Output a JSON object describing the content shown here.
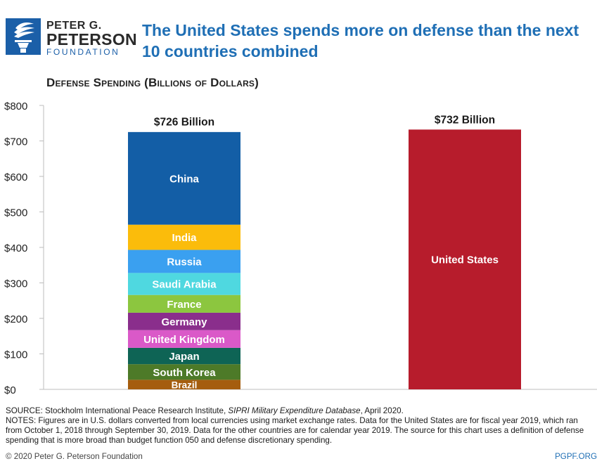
{
  "header": {
    "logo_line1": "PETER G.",
    "logo_line2": "PETERSON",
    "logo_line3": "FOUNDATION",
    "headline_line1": "The United States spends more on defense than the next",
    "headline_line2": "10 countries combined",
    "accent_color": "#1f6fb5"
  },
  "chart_data": {
    "type": "bar",
    "subtype": "stacked",
    "title": "Defense Spending (Billions of Dollars)",
    "ylim": [
      0,
      800
    ],
    "yticks": [
      0,
      100,
      200,
      300,
      400,
      500,
      600,
      700,
      800
    ],
    "ytick_labels": [
      "$0",
      "$100",
      "$200",
      "$300",
      "$400",
      "$500",
      "$600",
      "$700",
      "$800"
    ],
    "grid": false,
    "legend": "none",
    "bars": [
      {
        "total_label": "$726 Billion",
        "total": 726,
        "segments": [
          {
            "name": "Brazil",
            "value": 27,
            "color": "#a55d0e"
          },
          {
            "name": "South Korea",
            "value": 44,
            "color": "#4d7a28"
          },
          {
            "name": "Japan",
            "value": 46,
            "color": "#0e6455"
          },
          {
            "name": "United Kingdom",
            "value": 50,
            "color": "#da59c8"
          },
          {
            "name": "Germany",
            "value": 49,
            "color": "#8a2e8c"
          },
          {
            "name": "France",
            "value": 50,
            "color": "#8cc63f"
          },
          {
            "name": "Saudi Arabia",
            "value": 62,
            "color": "#4fd8e0"
          },
          {
            "name": "Russia",
            "value": 65,
            "color": "#3aa0f0"
          },
          {
            "name": "India",
            "value": 71,
            "color": "#fbbc0b"
          },
          {
            "name": "China",
            "value": 261,
            "color": "#135ea6"
          }
        ]
      },
      {
        "total_label": "$732 Billion",
        "total": 732,
        "segments": [
          {
            "name": "United States",
            "value": 732,
            "color": "#b71c2c"
          }
        ]
      }
    ]
  },
  "footer": {
    "source_prefix": "SOURCE: Stockholm International Peace Research Institute, ",
    "source_italic": "SIPRI Military Expenditure Database",
    "source_suffix": ", April 2020.",
    "notes": "NOTES: Figures are in U.S. dollars converted from local currencies using market exchange rates. Data for the United States are for fiscal year 2019, which ran from October 1, 2018 through September 30, 2019. Data for the other countries are for calendar year 2019. The source for this chart uses a definition of defense spending that is more broad than budget function 050 and defense discretionary spending.",
    "copyright": "© 2020 Peter G. Peterson Foundation",
    "site": "PGPF.ORG"
  }
}
